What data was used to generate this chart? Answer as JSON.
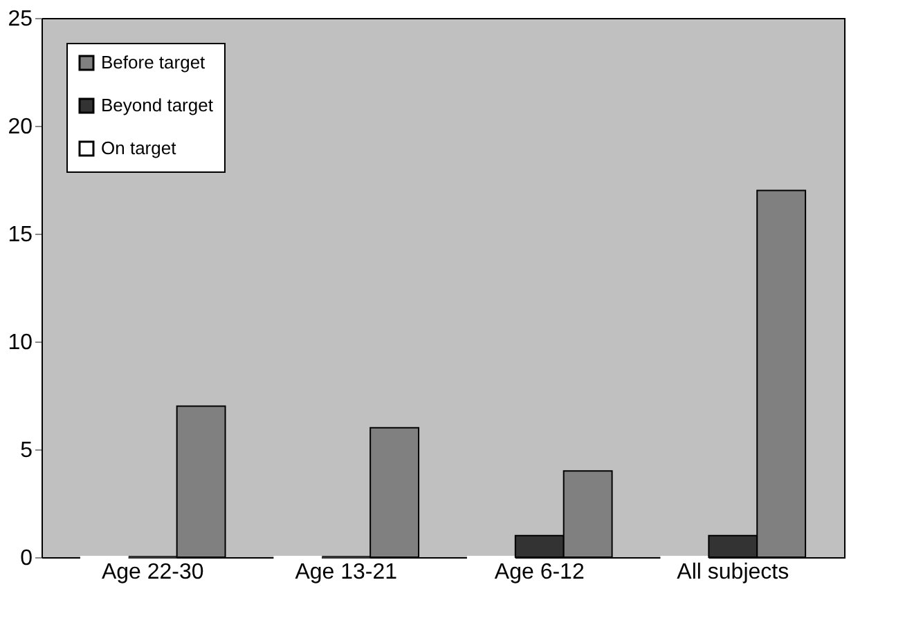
{
  "chart_data": {
    "type": "bar",
    "categories": [
      "Age 22-30",
      "Age 13-21",
      "Age 6-12",
      "All subjects"
    ],
    "series": [
      {
        "name": "On target",
        "color": "#ffffff",
        "values": [
          0,
          0,
          0,
          0
        ]
      },
      {
        "name": "Beyond target",
        "color": "#333333",
        "values": [
          0,
          0,
          1,
          1
        ]
      },
      {
        "name": "Before target",
        "color": "#808080",
        "values": [
          7,
          6,
          4,
          17
        ]
      }
    ],
    "ylim": [
      0,
      25
    ],
    "yticks": [
      0,
      5,
      10,
      15,
      20,
      25
    ],
    "grid": false,
    "legend": "top left"
  }
}
